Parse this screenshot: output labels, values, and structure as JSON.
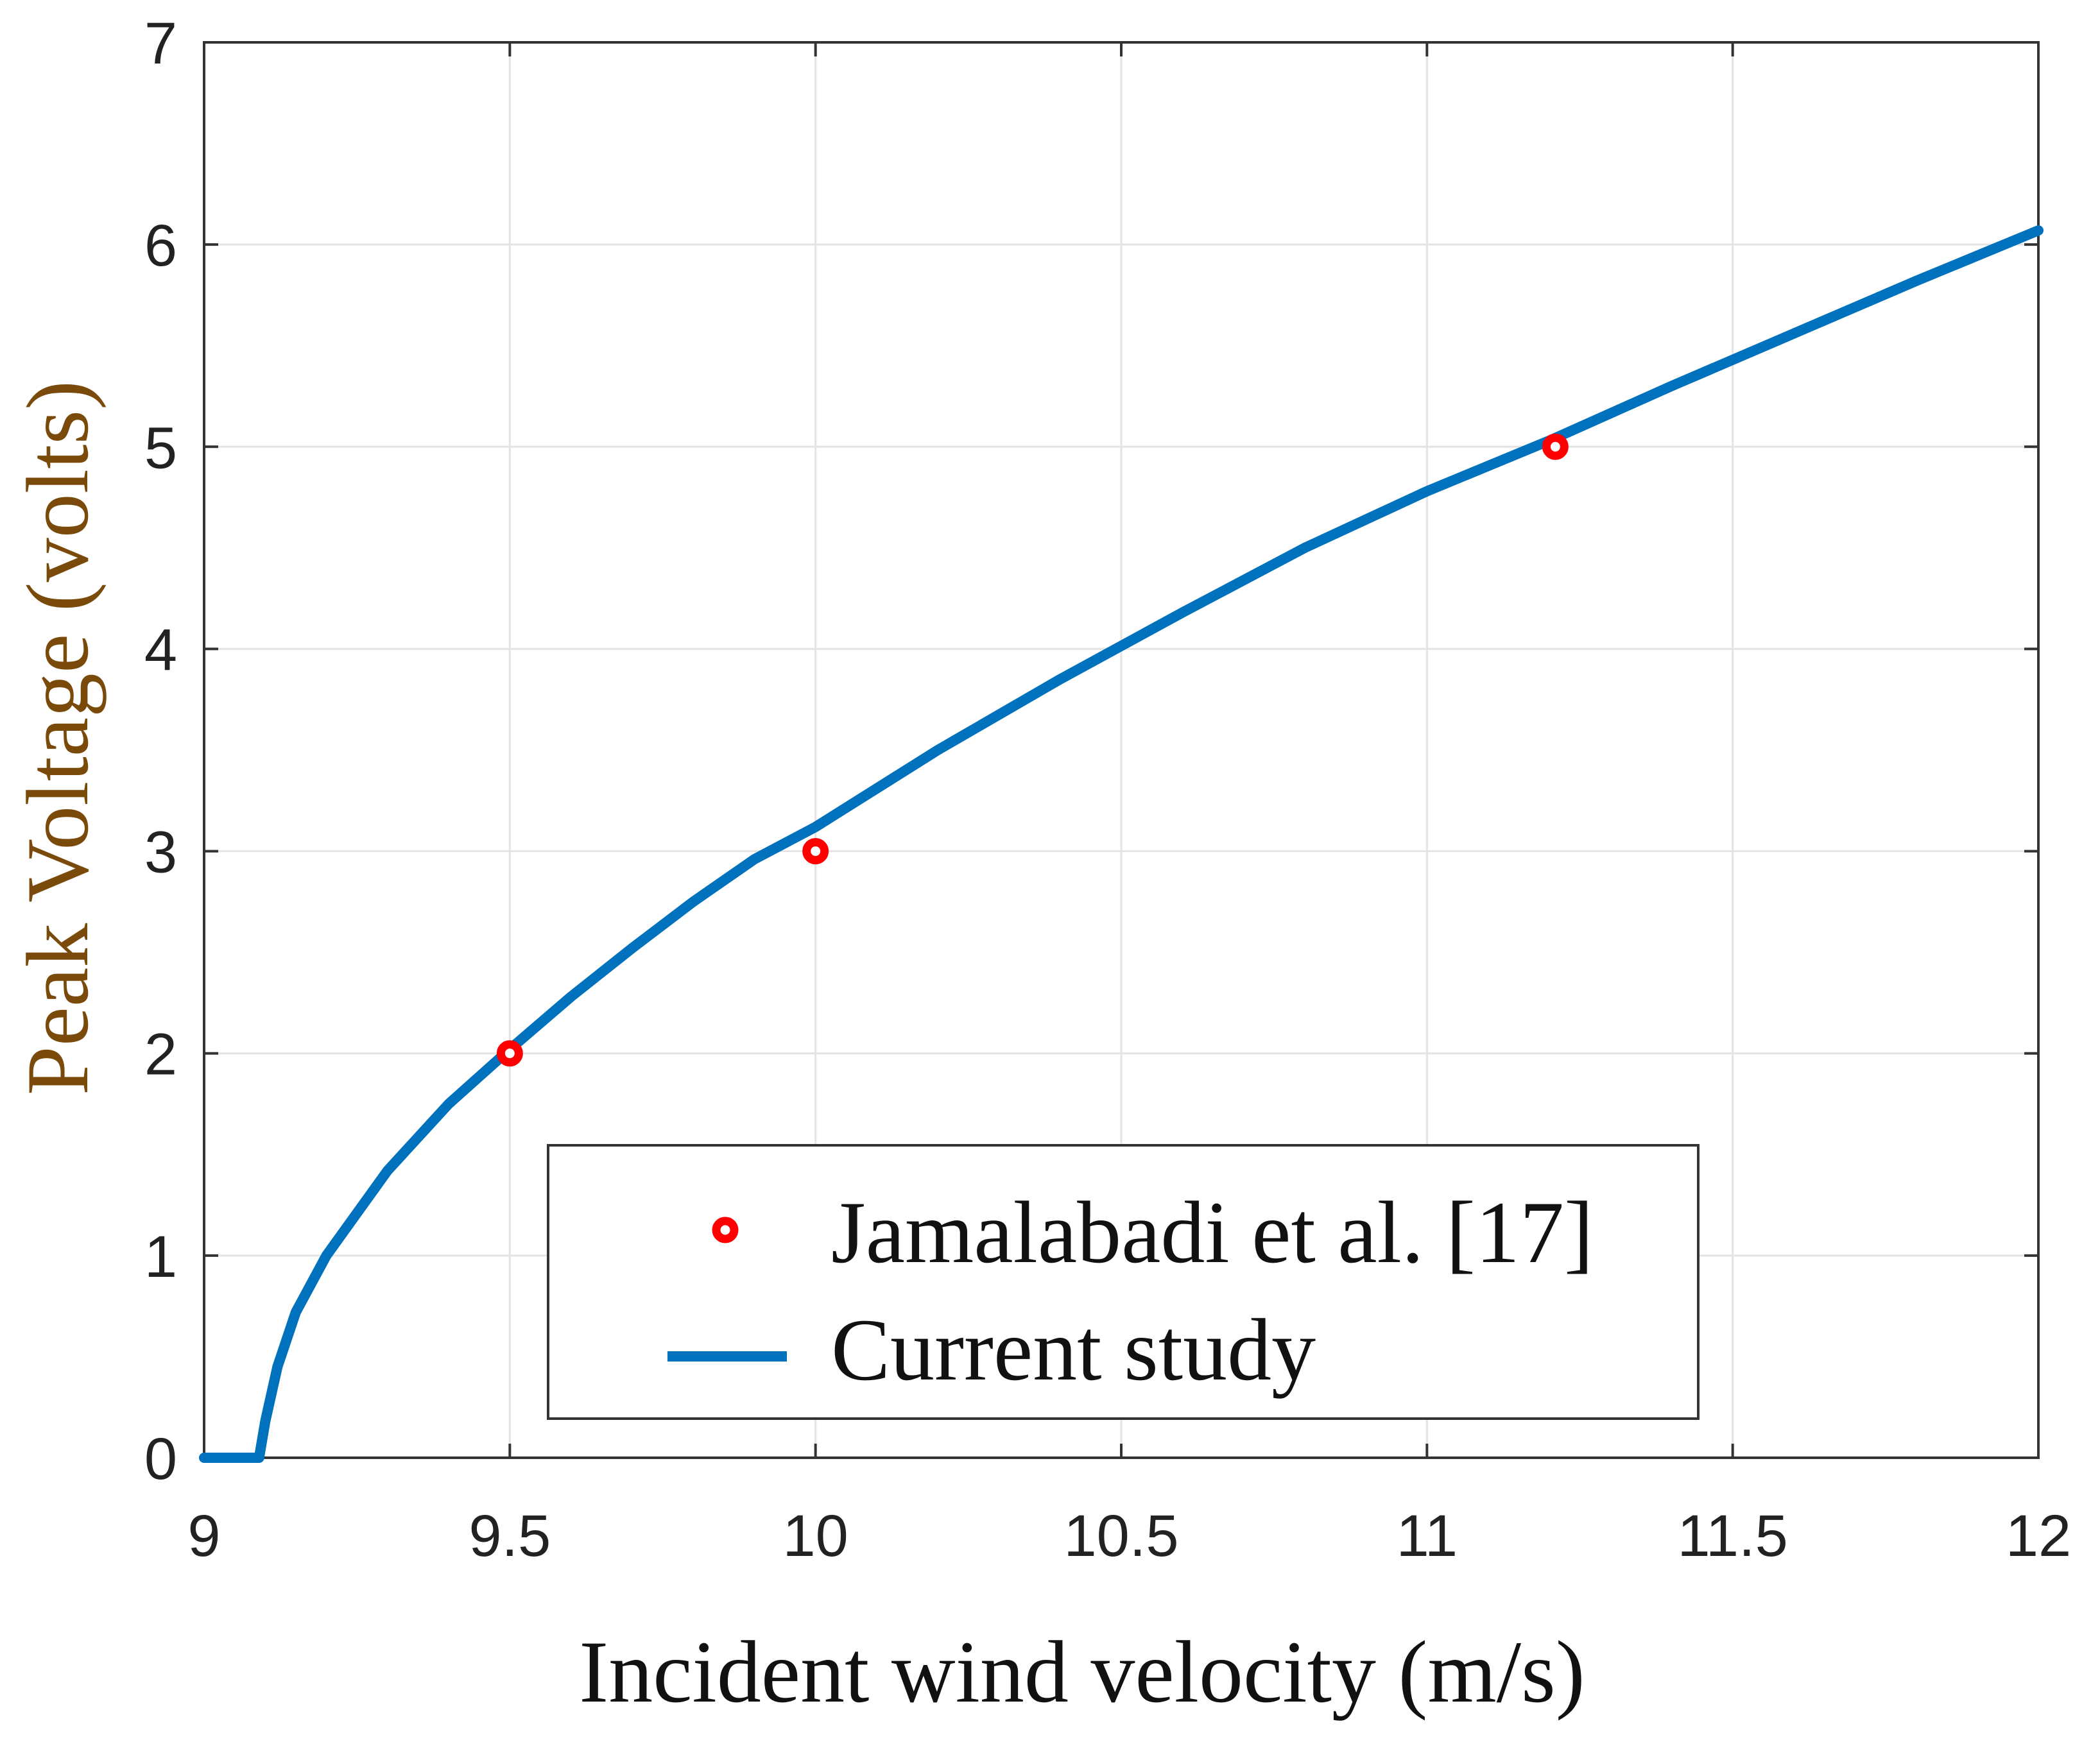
{
  "chart_data": {
    "type": "line",
    "title": "",
    "xlabel": "Incident wind velocity (m/s)",
    "ylabel": "Peak Voltage (volts)",
    "xlim": [
      9,
      12
    ],
    "ylim": [
      0,
      7
    ],
    "xticks": [
      "9",
      "9.5",
      "10",
      "10.5",
      "11",
      "11.5",
      "12"
    ],
    "yticks": [
      "0",
      "1",
      "2",
      "3",
      "4",
      "5",
      "6",
      "7"
    ],
    "grid": true,
    "legend_position": "bottom-right",
    "series": [
      {
        "name": "Jamalabadi et al. [17]",
        "kind": "scatter",
        "color": "#ff0000",
        "x": [
          9.5,
          10.0,
          11.21
        ],
        "y": [
          2.0,
          3.0,
          5.0
        ]
      },
      {
        "name": "Current study",
        "kind": "line",
        "color": "#0072bd",
        "x": [
          9.0,
          9.05,
          9.09,
          9.1,
          9.12,
          9.15,
          9.2,
          9.3,
          9.4,
          9.5,
          9.6,
          9.7,
          9.8,
          9.9,
          10.0,
          10.2,
          10.4,
          10.6,
          10.8,
          11.0,
          11.2,
          11.4,
          11.6,
          11.8,
          12.0
        ],
        "y": [
          0.0,
          0.0,
          0.0,
          0.18,
          0.45,
          0.72,
          1.0,
          1.42,
          1.75,
          2.02,
          2.28,
          2.52,
          2.75,
          2.96,
          3.12,
          3.5,
          3.85,
          4.18,
          4.5,
          4.78,
          5.03,
          5.3,
          5.56,
          5.82,
          6.07
        ]
      }
    ]
  }
}
